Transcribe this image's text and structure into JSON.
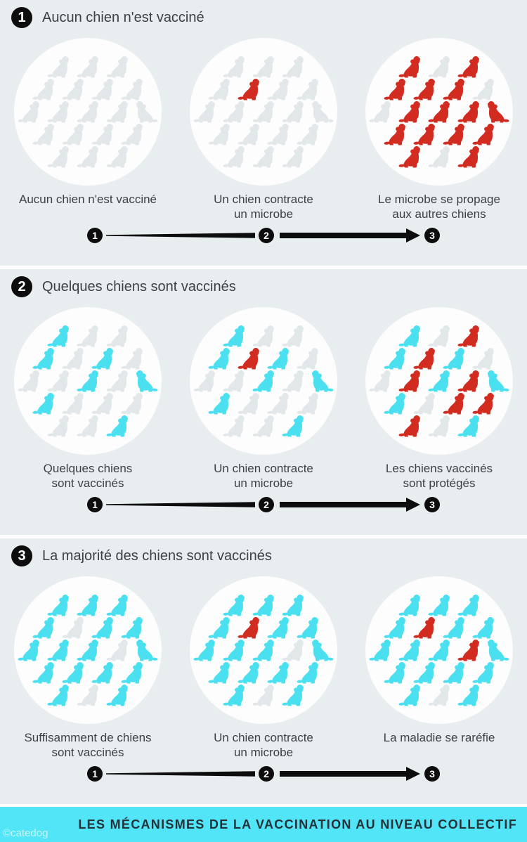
{
  "colors": {
    "background": "#e8edf0",
    "circle": "#fdfdfe",
    "unvaccinated": "#e2e7ea",
    "vaccinated": "#4be0f0",
    "infected": "#d22b20",
    "banner": "#52e5f7",
    "ink": "#0d0d0d"
  },
  "arrow": {
    "steps": [
      "1",
      "2",
      "3"
    ]
  },
  "sections": [
    {
      "number": "1",
      "title": "Aucun chien n'est vacciné",
      "steps": [
        {
          "caption": "Aucun chien n'est vacciné",
          "dogs": [
            "ggg",
            "gggg",
            "ggggg",
            "gggg",
            "ggg"
          ]
        },
        {
          "caption": "Un chien contracte\nun microbe",
          "dogs": [
            "ggg",
            "grgg",
            "ggggg",
            "gggg",
            "ggg"
          ]
        },
        {
          "caption": "Le microbe se propage\naux autres chiens",
          "dogs": [
            "rgr",
            "rrrg",
            "grrrr",
            "rrrr",
            "rgr"
          ]
        }
      ]
    },
    {
      "number": "2",
      "title": "Quelques chiens sont vaccinés",
      "steps": [
        {
          "caption": "Quelques chiens\nsont vaccinés",
          "dogs": [
            "cgg",
            "cgcg",
            "ggcgc",
            "cggg",
            "ggc"
          ]
        },
        {
          "caption": "Un chien contracte\nun microbe",
          "dogs": [
            "cgg",
            "crcg",
            "ggcgc",
            "cggg",
            "ggc"
          ]
        },
        {
          "caption": "Les chiens vaccinés\nsont protégés",
          "dogs": [
            "cgr",
            "crcg",
            "grcrc",
            "cgrr",
            "rgc"
          ]
        }
      ]
    },
    {
      "number": "3",
      "title": "La majorité des chiens sont vaccinés",
      "steps": [
        {
          "caption": "Suffisamment de chiens\nsont vaccinés",
          "dogs": [
            "ccc",
            "cgcc",
            "cccgc",
            "cccc",
            "cgc"
          ]
        },
        {
          "caption": "Un chien contracte\nun microbe",
          "dogs": [
            "ccc",
            "crcc",
            "cccgc",
            "cccc",
            "cgc"
          ]
        },
        {
          "caption": "La maladie se raréfie",
          "dogs": [
            "ccc",
            "crcc",
            "cccrc",
            "cccc",
            "cgc"
          ]
        }
      ]
    }
  ],
  "footer": {
    "title": "LES MÉCANISMES DE LA VACCINATION AU NIVEAU COLLECTIF",
    "credit": "©catedog"
  }
}
